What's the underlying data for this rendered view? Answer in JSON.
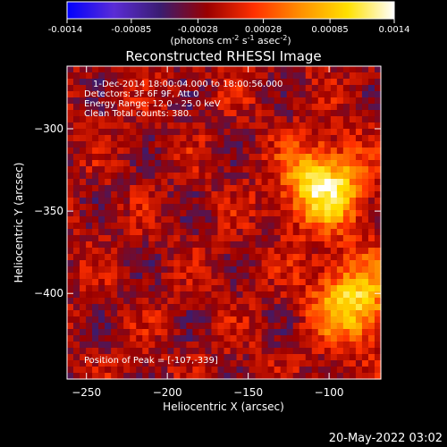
{
  "colorbar": {
    "ticks": [
      "-0.0014",
      "-0.00085",
      "-0.00028",
      "0.00028",
      "0.00085",
      "0.0014"
    ],
    "tick_values": [
      -0.0014,
      -0.00085,
      -0.00028,
      0.00028,
      0.00085,
      0.0014
    ],
    "range": [
      -0.0014,
      0.0014
    ],
    "units_prefix": "(photons cm",
    "units_exp1": "-2",
    "units_mid1": " s",
    "units_exp2": "-1",
    "units_mid2": " asec",
    "units_exp3": "-2",
    "units_suffix": ")",
    "colormap": [
      "#0000ff",
      "#5a2cd6",
      "#3a1c70",
      "#9a0000",
      "#ff3000",
      "#ff9000",
      "#ffe000",
      "#ffffff"
    ]
  },
  "chart_data": {
    "type": "heatmap",
    "title": "Reconstructed RHESSI Image",
    "xlabel": "Heliocentric X (arcsec)",
    "ylabel": "Heliocentric Y (arcsec)",
    "xlim": [
      -262,
      -68
    ],
    "ylim": [
      -452,
      -262
    ],
    "xticks": [
      -250,
      -200,
      -150,
      -100
    ],
    "yticks": [
      -300,
      -350,
      -400
    ],
    "xtick_labels": [
      "−250",
      "−200",
      "−150",
      "−100"
    ],
    "ytick_labels": [
      "−300",
      "−350",
      "−400"
    ],
    "annotations": [
      "1-Dec-2014 18:00:04.000 to 18:00:56.000",
      "Detectors: 3F 6F 9F, Att 0",
      "Energy Range: 12.0 - 25.0 keV",
      "Clean     Total counts: 380."
    ],
    "peak_label": "Position of Peak = [-107,-339]",
    "peak_position": [
      -107,
      -339
    ],
    "sources": [
      {
        "x": -103,
        "y": -335,
        "peak": 0.0014
      },
      {
        "x": -85,
        "y": -405,
        "peak": 0.0012
      }
    ]
  },
  "footer": {
    "timestamp": "20-May-2022 03:02"
  }
}
